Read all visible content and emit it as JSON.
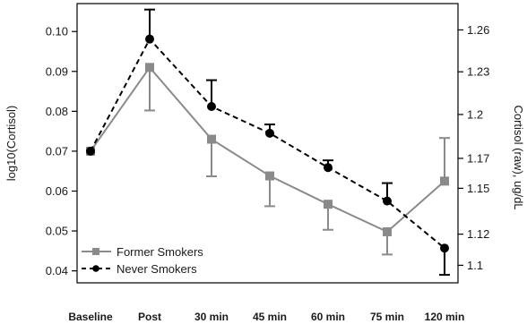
{
  "chart_data": {
    "type": "line",
    "categories": [
      "Baseline",
      "Post",
      "30 min",
      "45 min",
      "60 min",
      "75 min",
      "120 min"
    ],
    "ylabel": "log10(Cortisol)",
    "ylabel_right": "Cortisol (raw), ug/dL",
    "ylim": [
      0.037,
      0.107
    ],
    "y_ticks": [
      "0.04",
      "0.05",
      "0.06",
      "0.07",
      "0.08",
      "0.09",
      "0.10"
    ],
    "y_right_ticks": [
      {
        "label": "1.1",
        "value": 0.0414
      },
      {
        "label": "1.12",
        "value": 0.0492
      },
      {
        "label": "1.15",
        "value": 0.0607
      },
      {
        "label": "1.17",
        "value": 0.0682
      },
      {
        "label": "1.2",
        "value": 0.0792
      },
      {
        "label": "1.23",
        "value": 0.0899
      },
      {
        "label": "1.26",
        "value": 0.1004
      }
    ],
    "legend_position": "bottom-left",
    "grid": false,
    "series": [
      {
        "name": "Former Smokers",
        "style": "solid",
        "marker": "square",
        "color": "#8a8a8a",
        "values": [
          0.07,
          0.091,
          0.073,
          0.0638,
          0.0567,
          0.0498,
          0.0625
        ],
        "err_low": [
          0.07,
          0.0802,
          0.0637,
          0.0562,
          0.0503,
          0.0441,
          0.0625
        ],
        "err_high": [
          0.07,
          0.091,
          0.073,
          0.0638,
          0.0567,
          0.0498,
          0.0733
        ]
      },
      {
        "name": "Never Smokers",
        "style": "dashed",
        "marker": "circle",
        "color": "#000000",
        "values": [
          0.07,
          0.0981,
          0.0812,
          0.0745,
          0.0659,
          0.0575,
          0.0457
        ],
        "err_low": [
          0.07,
          0.0981,
          0.0812,
          0.0745,
          0.0659,
          0.0575,
          0.039
        ],
        "err_high": [
          0.07,
          0.1055,
          0.0878,
          0.0767,
          0.0677,
          0.062,
          0.0457
        ]
      }
    ]
  }
}
